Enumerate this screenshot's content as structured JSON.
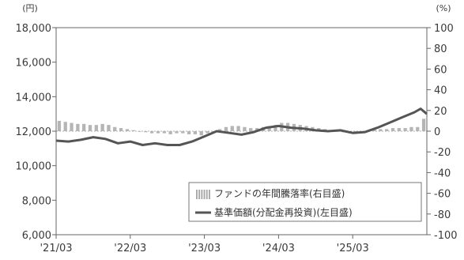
{
  "chart_data": {
    "type": "line",
    "left_axis": {
      "unit": "(円)",
      "ticks": [
        6000,
        8000,
        10000,
        12000,
        14000,
        16000,
        18000
      ],
      "tick_labels": [
        "6,000",
        "8,000",
        "10,000",
        "12,000",
        "14,000",
        "16,000",
        "18,000"
      ],
      "ylim": [
        6000,
        18000
      ]
    },
    "right_axis": {
      "unit": "(%)",
      "ticks": [
        -100,
        -80,
        -60,
        -40,
        -20,
        0,
        20,
        40,
        60,
        80,
        100
      ],
      "tick_labels": [
        "-100",
        "-80",
        "-60",
        "-40",
        "-20",
        "0",
        "20",
        "40",
        "60",
        "80",
        "100"
      ],
      "ylim": [
        -100,
        100
      ]
    },
    "x_tick_labels": [
      "'21/03",
      "'22/03",
      "'23/03",
      "'24/03",
      "'25/03"
    ],
    "x_tick_months": [
      0,
      12,
      24,
      36,
      48
    ],
    "x_range_months": [
      0,
      60
    ],
    "legend": {
      "placement": "bottom-right",
      "entries": [
        {
          "label": "ファンドの年間騰落率(右目盛)",
          "kind": "bar",
          "color": "#b8b8b8"
        },
        {
          "label": "基準価額(分配金再投資)(左目盛)",
          "kind": "line",
          "color": "#555555"
        }
      ]
    },
    "series": [
      {
        "name": "基準価額(分配金再投資)(左目盛)",
        "axis": "left",
        "x": [
          0,
          2,
          4,
          6,
          8,
          10,
          12,
          14,
          16,
          18,
          20,
          22,
          24,
          26,
          28,
          30,
          32,
          34,
          36,
          38,
          40,
          42,
          44,
          46,
          48,
          50,
          52,
          54,
          56,
          58,
          59,
          60
        ],
        "values": [
          11450,
          11400,
          11500,
          11650,
          11550,
          11300,
          11400,
          11200,
          11300,
          11200,
          11200,
          11400,
          11700,
          12000,
          11900,
          11800,
          11950,
          12200,
          12300,
          12200,
          12150,
          12050,
          12000,
          12050,
          11900,
          11950,
          12200,
          12500,
          12800,
          13100,
          13300,
          13000
        ]
      },
      {
        "name": "ファンドの年間騰落率(右目盛)",
        "axis": "right",
        "x": [
          0,
          1,
          2,
          3,
          4,
          5,
          6,
          7,
          8,
          9,
          10,
          11,
          12,
          13,
          14,
          15,
          16,
          17,
          18,
          19,
          20,
          21,
          22,
          23,
          24,
          25,
          26,
          27,
          28,
          29,
          30,
          31,
          32,
          33,
          34,
          35,
          36,
          37,
          38,
          39,
          40,
          41,
          42,
          43,
          44,
          45,
          46,
          47,
          48,
          49,
          50,
          51,
          52,
          53,
          54,
          55,
          56,
          57,
          58,
          59
        ],
        "values": [
          10,
          9,
          8,
          7,
          7,
          6,
          6,
          7,
          6,
          4,
          3,
          2,
          1,
          0,
          -1,
          -2,
          -2,
          -2,
          -3,
          -2,
          -2,
          -3,
          -3,
          -4,
          -2,
          0,
          2,
          4,
          5,
          5,
          4,
          3,
          3,
          4,
          5,
          6,
          8,
          8,
          7,
          6,
          5,
          4,
          3,
          2,
          1,
          0,
          -1,
          -2,
          -1,
          0,
          1,
          2,
          2,
          2,
          3,
          3,
          3,
          4,
          4,
          12
        ]
      }
    ]
  }
}
